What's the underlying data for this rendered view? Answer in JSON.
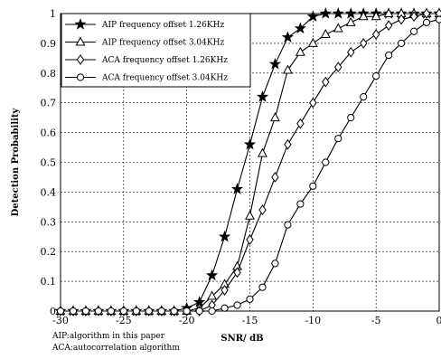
{
  "chart_data": {
    "type": "line",
    "title": "",
    "xlabel": "SNR/ dB",
    "ylabel": "Detection Probability",
    "xlim": [
      -30,
      0
    ],
    "ylim": [
      0,
      1
    ],
    "xticks": [
      -30,
      -25,
      -20,
      -15,
      -10,
      -5,
      0
    ],
    "yticks": [
      0,
      0.1,
      0.2,
      0.3,
      0.4,
      0.5,
      0.6,
      0.7,
      0.8,
      0.9,
      1
    ],
    "xtick_labels": [
      "-30",
      "-25",
      "-20",
      "-15",
      "-10",
      "-5",
      "0"
    ],
    "ytick_labels": [
      "0",
      "0.1",
      "0.2",
      "0.3",
      "0.4",
      "0.5",
      "0.6",
      "0.7",
      "0.8",
      "0.9",
      "1"
    ],
    "grid": true,
    "legend_position": "top-left",
    "series": [
      {
        "name": "AIP  frequency offset 1.26KHz",
        "marker": "star",
        "x": [
          -30,
          -29,
          -28,
          -27,
          -26,
          -25,
          -24,
          -23,
          -22,
          -21,
          -20,
          -19,
          -18,
          -17,
          -16,
          -15,
          -14,
          -13,
          -12,
          -11,
          -10,
          -9,
          -8,
          -7,
          -6,
          -5,
          -4,
          -3,
          -2,
          -1,
          0
        ],
        "y": [
          0,
          0,
          0,
          0,
          0,
          0,
          0,
          0,
          0,
          0,
          0.01,
          0.03,
          0.12,
          0.25,
          0.41,
          0.56,
          0.72,
          0.83,
          0.92,
          0.95,
          0.99,
          1,
          1,
          1,
          1,
          1,
          1,
          1,
          1,
          1,
          1
        ]
      },
      {
        "name": "AIP  frequency offset   3.04KHz",
        "marker": "triangle",
        "x": [
          -30,
          -29,
          -28,
          -27,
          -26,
          -25,
          -24,
          -23,
          -22,
          -21,
          -20,
          -19,
          -18,
          -17,
          -16,
          -15,
          -14,
          -13,
          -12,
          -11,
          -10,
          -9,
          -8,
          -7,
          -6,
          -5,
          -4,
          -3,
          -2,
          -1,
          0
        ],
        "y": [
          0,
          0,
          0,
          0,
          0,
          0,
          0,
          0,
          0,
          0,
          0,
          0.01,
          0.05,
          0.09,
          0.15,
          0.32,
          0.53,
          0.65,
          0.81,
          0.87,
          0.9,
          0.93,
          0.95,
          0.97,
          0.99,
          0.99,
          1,
          1,
          1,
          1,
          1
        ]
      },
      {
        "name": "ACA  frequency offset 1.26KHz",
        "marker": "diamond",
        "x": [
          -30,
          -29,
          -28,
          -27,
          -26,
          -25,
          -24,
          -23,
          -22,
          -21,
          -20,
          -19,
          -18,
          -17,
          -16,
          -15,
          -14,
          -13,
          -12,
          -11,
          -10,
          -9,
          -8,
          -7,
          -6,
          -5,
          -4,
          -3,
          -2,
          -1,
          0
        ],
        "y": [
          0,
          0,
          0,
          0,
          0,
          0,
          0,
          0,
          0,
          0,
          0,
          0,
          0.02,
          0.07,
          0.13,
          0.24,
          0.34,
          0.45,
          0.56,
          0.63,
          0.7,
          0.77,
          0.82,
          0.87,
          0.9,
          0.93,
          0.96,
          0.98,
          0.99,
          1,
          1
        ]
      },
      {
        "name": "ACA  frequency offset 3.04KHz",
        "marker": "circle",
        "x": [
          -30,
          -29,
          -28,
          -27,
          -26,
          -25,
          -24,
          -23,
          -22,
          -21,
          -20,
          -19,
          -18,
          -17,
          -16,
          -15,
          -14,
          -13,
          -12,
          -11,
          -10,
          -9,
          -8,
          -7,
          -6,
          -5,
          -4,
          -3,
          -2,
          -1,
          0
        ],
        "y": [
          0,
          0,
          0,
          0,
          0,
          0,
          0,
          0,
          0,
          0,
          0,
          0,
          0,
          0.01,
          0.02,
          0.04,
          0.08,
          0.16,
          0.29,
          0.36,
          0.42,
          0.5,
          0.58,
          0.65,
          0.72,
          0.79,
          0.86,
          0.9,
          0.94,
          0.97,
          0.98
        ]
      }
    ]
  },
  "notes": [
    "AIP:algorithm in this paper",
    "ACA:autocorrelation algorithm"
  ]
}
